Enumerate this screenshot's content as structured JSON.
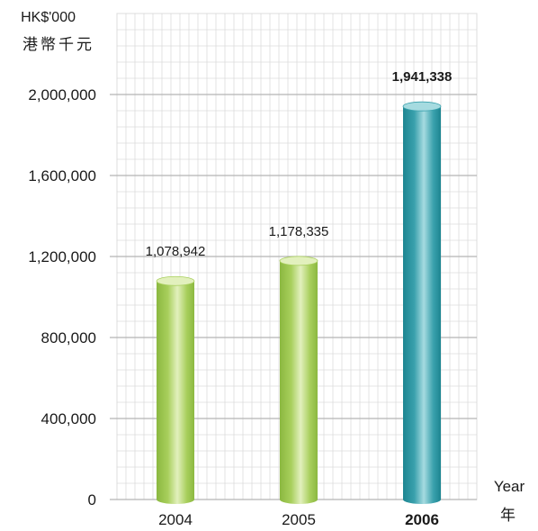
{
  "chart_data": {
    "type": "bar",
    "unit_label": "HK$'000",
    "unit_label_cn": "港幣千元",
    "xlabel": "Year",
    "xlabel_cn": "年",
    "categories": [
      "2004",
      "2005",
      "2006"
    ],
    "values": [
      1078942,
      1178335,
      1941338
    ],
    "value_labels": [
      "1,078,942",
      "1,178,335",
      "1,941,338"
    ],
    "highlight_index": 2,
    "yticks": [
      0,
      400000,
      800000,
      1200000,
      1600000,
      2000000
    ],
    "ytick_labels": [
      "0",
      "400,000",
      "800,000",
      "1,200,000",
      "1,600,000",
      "2,000,000"
    ],
    "ylim": [
      0,
      2400000
    ],
    "grid": true,
    "colors": {
      "bar_normal": "#a8cf5c",
      "bar_normal_light": "#e2f0bd",
      "bar_normal_dark": "#8bb840",
      "bar_highlight": "#3aa1ad",
      "bar_highlight_light": "#a6dbe0",
      "bar_highlight_dark": "#1d8591",
      "grid_minor": "#dcdcdc",
      "grid_major": "#b4b4b4"
    }
  }
}
